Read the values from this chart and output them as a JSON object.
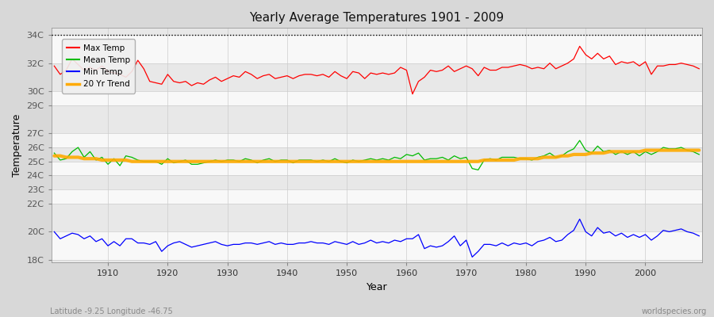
{
  "title": "Yearly Average Temperatures 1901 - 2009",
  "xlabel": "Year",
  "ylabel": "Temperature",
  "bottom_left": "Latitude -9.25 Longitude -46.75",
  "bottom_right": "worldspecies.org",
  "year_start": 1901,
  "year_end": 2009,
  "ylim": [
    17.8,
    34.5
  ],
  "dotted_line_y": 34,
  "bg_color": "#d8d8d8",
  "plot_bg_color": "#e0e0e0",
  "grid_color": "#ffffff",
  "max_color": "#ff0000",
  "mean_color": "#00bb00",
  "min_color": "#0000ff",
  "trend_color": "#ffaa00",
  "legend_labels": [
    "Max Temp",
    "Mean Temp",
    "Min Temp",
    "20 Yr Trend"
  ],
  "ytick_positions": [
    18,
    20,
    22,
    23,
    24,
    25,
    26,
    27,
    29,
    30,
    32,
    34
  ],
  "ytick_labels": [
    "18C",
    "20C",
    "22C",
    "23C",
    "24C",
    "25C",
    "26C",
    "27C",
    "29C",
    "30C",
    "32C",
    "34C"
  ],
  "xtick_positions": [
    1910,
    1920,
    1930,
    1940,
    1950,
    1960,
    1970,
    1980,
    1990,
    2000
  ],
  "max_temp": [
    31.8,
    31.2,
    31.5,
    32.3,
    31.9,
    31.5,
    31.7,
    31.5,
    31.8,
    31.4,
    31.3,
    31.2,
    31.0,
    31.4,
    32.2,
    31.6,
    30.7,
    30.6,
    30.5,
    31.2,
    30.7,
    30.6,
    30.7,
    30.4,
    30.6,
    30.5,
    30.8,
    31.0,
    30.7,
    30.9,
    31.1,
    31.0,
    31.4,
    31.2,
    30.9,
    31.1,
    31.2,
    30.9,
    31.0,
    31.1,
    30.9,
    31.1,
    31.2,
    31.2,
    31.1,
    31.2,
    31.0,
    31.4,
    31.1,
    30.9,
    31.4,
    31.3,
    30.9,
    31.3,
    31.2,
    31.3,
    31.2,
    31.3,
    31.7,
    31.5,
    29.8,
    30.7,
    31.0,
    31.5,
    31.4,
    31.5,
    31.8,
    31.4,
    31.6,
    31.8,
    31.6,
    31.1,
    31.7,
    31.5,
    31.5,
    31.7,
    31.7,
    31.8,
    31.9,
    31.8,
    31.6,
    31.7,
    31.6,
    32.0,
    31.6,
    31.8,
    32.0,
    32.3,
    33.2,
    32.6,
    32.3,
    32.7,
    32.3,
    32.5,
    31.9,
    32.1,
    32.0,
    32.1,
    31.8,
    32.1,
    31.2,
    31.8,
    31.8,
    31.9,
    31.9,
    32.0,
    31.9,
    31.8,
    31.6
  ],
  "mean_temp": [
    25.6,
    25.1,
    25.2,
    25.7,
    26.0,
    25.3,
    25.7,
    25.1,
    25.3,
    24.8,
    25.2,
    24.7,
    25.4,
    25.3,
    25.1,
    25.0,
    25.0,
    25.0,
    24.8,
    25.2,
    24.9,
    25.0,
    25.1,
    24.8,
    24.8,
    24.9,
    25.0,
    25.1,
    25.0,
    25.1,
    25.1,
    25.0,
    25.2,
    25.1,
    24.9,
    25.1,
    25.2,
    25.0,
    25.1,
    25.1,
    24.9,
    25.1,
    25.1,
    25.1,
    25.0,
    25.1,
    25.0,
    25.2,
    25.0,
    24.9,
    25.1,
    25.0,
    25.1,
    25.2,
    25.1,
    25.2,
    25.1,
    25.3,
    25.2,
    25.5,
    25.4,
    25.6,
    25.1,
    25.2,
    25.2,
    25.3,
    25.1,
    25.4,
    25.2,
    25.3,
    24.5,
    24.4,
    25.1,
    25.2,
    25.1,
    25.3,
    25.3,
    25.3,
    25.2,
    25.2,
    25.1,
    25.3,
    25.4,
    25.6,
    25.3,
    25.4,
    25.7,
    25.9,
    26.5,
    25.8,
    25.6,
    26.1,
    25.7,
    25.8,
    25.5,
    25.7,
    25.5,
    25.7,
    25.4,
    25.7,
    25.5,
    25.7,
    26.0,
    25.9,
    25.9,
    26.0,
    25.8,
    25.7,
    25.5
  ],
  "min_temp": [
    20.0,
    19.5,
    19.7,
    19.9,
    19.8,
    19.5,
    19.7,
    19.3,
    19.5,
    19.0,
    19.3,
    19.0,
    19.5,
    19.5,
    19.2,
    19.2,
    19.1,
    19.3,
    18.6,
    19.0,
    19.2,
    19.3,
    19.1,
    18.9,
    19.0,
    19.1,
    19.2,
    19.3,
    19.1,
    19.0,
    19.1,
    19.1,
    19.2,
    19.2,
    19.1,
    19.2,
    19.3,
    19.1,
    19.2,
    19.1,
    19.1,
    19.2,
    19.2,
    19.3,
    19.2,
    19.2,
    19.1,
    19.3,
    19.2,
    19.1,
    19.3,
    19.1,
    19.2,
    19.4,
    19.2,
    19.3,
    19.2,
    19.4,
    19.3,
    19.5,
    19.5,
    19.8,
    18.8,
    19.0,
    18.9,
    19.0,
    19.3,
    19.7,
    19.0,
    19.4,
    18.2,
    18.6,
    19.1,
    19.1,
    19.0,
    19.2,
    19.0,
    19.2,
    19.1,
    19.2,
    19.0,
    19.3,
    19.4,
    19.6,
    19.3,
    19.4,
    19.8,
    20.1,
    20.9,
    20.0,
    19.7,
    20.3,
    19.9,
    20.0,
    19.7,
    19.9,
    19.6,
    19.8,
    19.6,
    19.8,
    19.4,
    19.7,
    20.1,
    20.0,
    20.1,
    20.2,
    20.0,
    19.9,
    19.7
  ],
  "trend": [
    25.4,
    25.4,
    25.3,
    25.3,
    25.3,
    25.2,
    25.2,
    25.2,
    25.1,
    25.1,
    25.1,
    25.1,
    25.1,
    25.0,
    25.0,
    25.0,
    25.0,
    25.0,
    25.0,
    25.0,
    25.0,
    25.0,
    25.0,
    25.0,
    25.0,
    25.0,
    25.0,
    25.0,
    25.0,
    25.0,
    25.0,
    25.0,
    25.0,
    25.0,
    25.0,
    25.0,
    25.0,
    25.0,
    25.0,
    25.0,
    25.0,
    25.0,
    25.0,
    25.0,
    25.0,
    25.0,
    25.0,
    25.0,
    25.0,
    25.0,
    25.0,
    25.0,
    25.0,
    25.0,
    25.0,
    25.0,
    25.0,
    25.0,
    25.0,
    25.0,
    25.0,
    25.0,
    25.0,
    25.0,
    25.0,
    25.0,
    25.0,
    25.0,
    25.0,
    25.0,
    25.0,
    25.0,
    25.1,
    25.1,
    25.1,
    25.1,
    25.1,
    25.1,
    25.2,
    25.2,
    25.2,
    25.2,
    25.3,
    25.3,
    25.3,
    25.4,
    25.4,
    25.5,
    25.5,
    25.5,
    25.6,
    25.6,
    25.6,
    25.7,
    25.7,
    25.7,
    25.7,
    25.7,
    25.7,
    25.8,
    25.8,
    25.8,
    25.8,
    25.8,
    25.8,
    25.8,
    25.8,
    25.8,
    25.8
  ]
}
